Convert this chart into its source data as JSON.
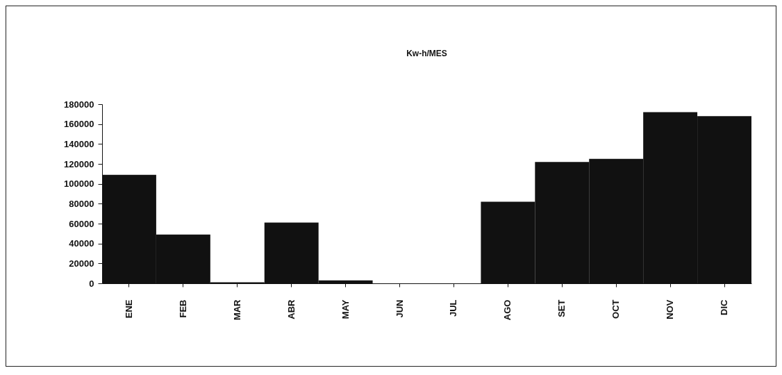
{
  "chart_data": {
    "type": "bar",
    "title": "Kw-h/MES",
    "categories": [
      "ENE",
      "FEB",
      "MAR",
      "ABR",
      "MAY",
      "JUN",
      "JUL",
      "AGO",
      "SET",
      "OCT",
      "NOV",
      "DIC"
    ],
    "values": [
      109000,
      49000,
      1000,
      61000,
      3000,
      0,
      0,
      82000,
      122000,
      125000,
      172000,
      168000
    ],
    "color": "#111111",
    "ylim": [
      0,
      180000
    ],
    "yticks": [
      0,
      20000,
      40000,
      60000,
      80000,
      100000,
      120000,
      140000,
      160000,
      180000
    ],
    "grid": false
  }
}
